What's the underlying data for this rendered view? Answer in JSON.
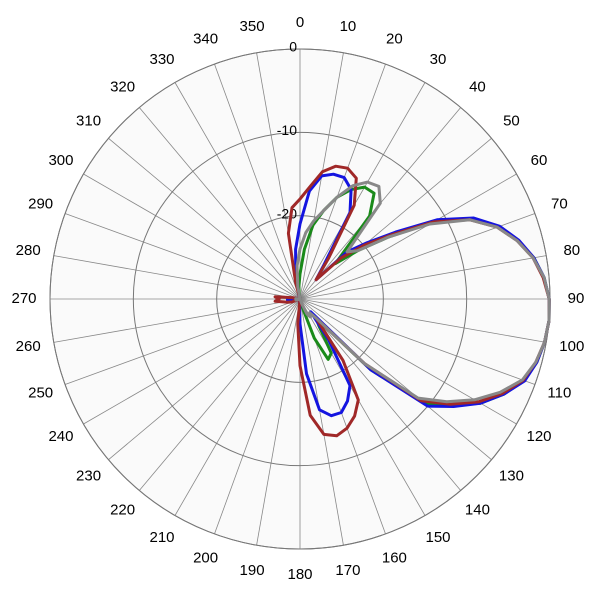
{
  "chart_data": {
    "type": "polar",
    "theta": [
      0,
      5,
      10,
      15,
      20,
      25,
      30,
      35,
      40,
      45,
      50,
      55,
      60,
      65,
      70,
      75,
      80,
      85,
      90,
      95,
      100,
      105,
      110,
      115,
      120,
      125,
      130,
      135,
      140,
      145,
      150,
      155,
      160,
      165,
      170,
      175,
      180,
      185,
      190,
      195,
      200,
      205,
      210,
      215,
      220,
      225,
      230,
      235,
      240,
      245,
      250,
      255,
      260,
      265,
      270,
      275,
      280,
      285,
      290,
      295,
      300,
      305,
      310,
      315,
      320,
      325,
      330,
      335,
      340,
      345,
      350,
      355
    ],
    "angle_ticks": [
      0,
      10,
      20,
      30,
      40,
      50,
      60,
      70,
      80,
      90,
      100,
      110,
      120,
      130,
      140,
      150,
      160,
      170,
      180,
      190,
      200,
      210,
      220,
      230,
      240,
      250,
      260,
      270,
      280,
      290,
      300,
      310,
      320,
      330,
      340,
      350
    ],
    "rlim": [
      -30,
      0
    ],
    "rticks": [
      -20,
      -10,
      0
    ],
    "grid": true,
    "series": [
      {
        "color": "#1a8a1a",
        "values": [
          -27,
          -24,
          -21,
          -19,
          -17,
          -15.5,
          -14.5,
          -14.5,
          -17,
          -24,
          -21,
          -17,
          -11.5,
          -7.2,
          -4.6,
          -2.9,
          -1.5,
          -0.6,
          -0.1,
          0,
          -0.2,
          -0.6,
          -1.4,
          -3,
          -5,
          -7.8,
          -10.5,
          -18,
          -27,
          -26,
          -22.5,
          -22,
          -25,
          -29,
          -30,
          -30,
          -30,
          -30,
          -30,
          -30,
          -30,
          -30,
          -30,
          -30,
          -30,
          -30,
          -30,
          -30,
          -30,
          -30,
          -30,
          -30,
          -29.5,
          -29.5,
          -29.5,
          -29.5,
          -30,
          -30,
          -30,
          -30,
          -30,
          -30,
          -30,
          -30,
          -30,
          -30,
          -30,
          -30,
          -30,
          -30,
          -29.5,
          -28.5
        ]
      },
      {
        "color": "#1414e0",
        "values": [
          -21,
          -17,
          -15,
          -14.5,
          -14.5,
          -15.5,
          -18,
          -25,
          -27,
          -22,
          -19.5,
          -16,
          -11,
          -7,
          -4.5,
          -2.8,
          -1.5,
          -0.6,
          -0.1,
          0,
          -0.2,
          -0.6,
          -1.3,
          -3,
          -5,
          -7.5,
          -10,
          -18,
          -28,
          -24,
          -18,
          -16.5,
          -15.5,
          -15.5,
          -16.5,
          -21,
          -27,
          -29.5,
          -30,
          -30,
          -30,
          -30,
          -30,
          -30,
          -30,
          -30,
          -30,
          -30,
          -30,
          -30,
          -29.5,
          -29.5,
          -29,
          -28.5,
          -28.5,
          -29,
          -29.5,
          -30,
          -30,
          -30,
          -30,
          -30,
          -30,
          -30,
          -30,
          -30,
          -30,
          -30,
          -30,
          -29.5,
          -27,
          -24
        ]
      },
      {
        "color": "#a02828",
        "values": [
          -18,
          -16.5,
          -14.5,
          -13.5,
          -13.3,
          -14,
          -17,
          -24,
          -27,
          -23,
          -20,
          -16.5,
          -11.5,
          -7.5,
          -4.8,
          -3,
          -1.6,
          -0.7,
          -0.1,
          0,
          -0.2,
          -0.7,
          -1.5,
          -3.2,
          -5.3,
          -8,
          -11,
          -19,
          -27,
          -21,
          -16,
          -14.5,
          -13.5,
          -13,
          -13.5,
          -16,
          -22,
          -27,
          -30,
          -30,
          -30,
          -30,
          -30,
          -30,
          -30,
          -30,
          -30,
          -30,
          -30,
          -30,
          -29,
          -28.5,
          -28,
          -27,
          -27.5,
          -27,
          -29,
          -30,
          -30,
          -30,
          -30,
          -30,
          -30,
          -30,
          -30,
          -30,
          -30,
          -30,
          -30,
          -28,
          -22,
          -19
        ]
      },
      {
        "color": "#888888",
        "values": [
          -24,
          -22,
          -20.5,
          -19,
          -17,
          -15,
          -13.8,
          -13.5,
          -15,
          -22,
          -21,
          -17,
          -12,
          -7.5,
          -4.8,
          -3,
          -1.6,
          -0.6,
          -0.1,
          0,
          -0.2,
          -0.7,
          -1.6,
          -3.5,
          -5.8,
          -8.5,
          -11.5,
          -19,
          -27,
          -28,
          -27.5,
          -28,
          -29.5,
          -30,
          -30,
          -30,
          -30,
          -30,
          -30,
          -30,
          -30,
          -30,
          -30,
          -30,
          -30,
          -30,
          -30,
          -30,
          -30,
          -30,
          -30,
          -29.5,
          -29.5,
          -29.5,
          -29.5,
          -29.5,
          -30,
          -30,
          -30,
          -30,
          -30,
          -30,
          -30,
          -30,
          -30,
          -30,
          -30,
          -30,
          -30,
          -30,
          -28.5,
          -26
        ]
      }
    ]
  }
}
